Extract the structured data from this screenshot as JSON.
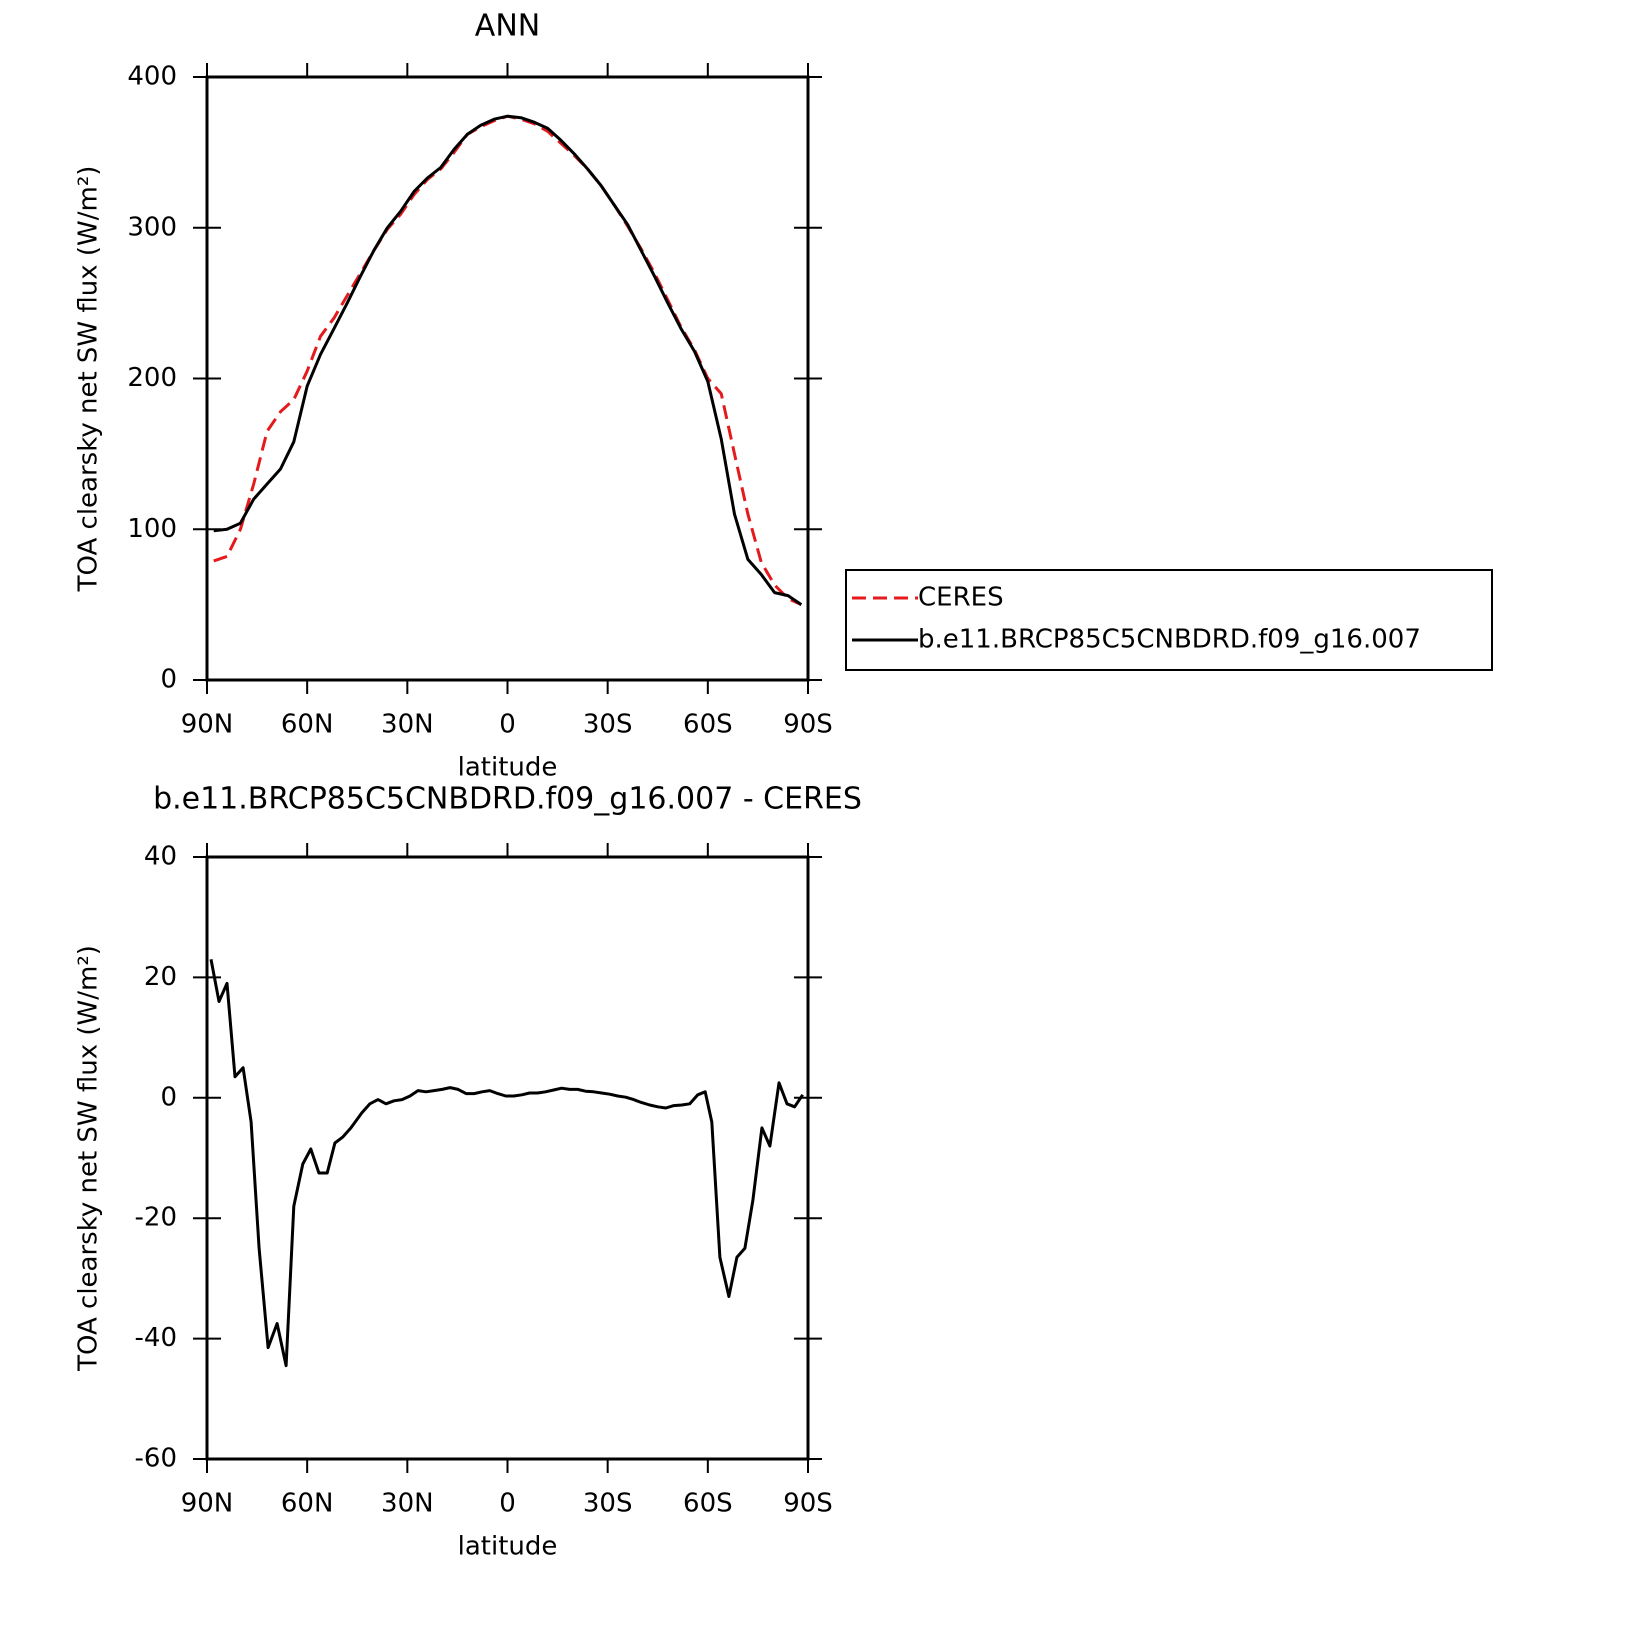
{
  "chart_data": [
    {
      "type": "line",
      "title": "ANN",
      "xlabel": "latitude",
      "ylabel": "TOA clearsky net SW flux (W/m²)",
      "x": [
        88,
        84,
        80,
        76,
        72,
        68,
        64,
        60,
        56,
        52,
        48,
        44,
        40,
        36,
        32,
        28,
        24,
        20,
        16,
        12,
        8,
        4,
        0,
        -4,
        -8,
        -12,
        -16,
        -20,
        -24,
        -28,
        -32,
        -36,
        -40,
        -44,
        -48,
        -52,
        -56,
        -60,
        -64,
        -68,
        -72,
        -76,
        -80,
        -84,
        -88
      ],
      "series": [
        {
          "name": "CERES",
          "color": "#e41a1c",
          "line_style": "dashed",
          "values": [
            79,
            82,
            100,
            130,
            165,
            178,
            186,
            205,
            228,
            240,
            255,
            270,
            285,
            299,
            309,
            322,
            332,
            339,
            350,
            362,
            367,
            371,
            374,
            372,
            369,
            364,
            356,
            348,
            339,
            328,
            315,
            301,
            286,
            270,
            252,
            234,
            219,
            200,
            190,
            150,
            110,
            78,
            63,
            54,
            50
          ]
        },
        {
          "name": "b.e11.BRCP85C5CNBDRD.f09_g16.007",
          "color": "#000000",
          "line_style": "solid",
          "values": [
            99,
            100,
            104,
            120,
            130,
            140,
            158,
            195,
            216,
            233,
            250,
            268,
            285,
            300,
            311,
            324,
            333,
            340,
            352,
            362,
            368,
            372,
            374,
            373,
            370,
            366,
            358,
            349,
            339,
            328,
            315,
            302,
            285,
            268,
            250,
            233,
            218,
            198,
            160,
            110,
            80,
            70,
            58,
            56,
            50
          ]
        }
      ],
      "xlim": [
        90,
        -90
      ],
      "xticks": [
        {
          "value": 90,
          "label": "90N"
        },
        {
          "value": 60,
          "label": "60N"
        },
        {
          "value": 30,
          "label": "30N"
        },
        0,
        {
          "value": -30,
          "label": "30S"
        },
        {
          "value": -60,
          "label": "60S"
        },
        {
          "value": -90,
          "label": "90S"
        }
      ],
      "ylim": [
        0,
        400
      ],
      "yticks": [
        0,
        100,
        200,
        300,
        400
      ],
      "legend": "right"
    },
    {
      "type": "line",
      "title": "b.e11.BRCP85C5CNBDRD.f09_g16.007 - CERES",
      "xlabel": "latitude",
      "ylabel": "TOA clearsky net SW flux (W/m²)",
      "x": [
        88.8,
        86.4,
        84,
        81.6,
        79.2,
        76.8,
        74.4,
        71.7,
        69,
        66.3,
        64,
        61.3,
        58.9,
        56.5,
        54,
        51.7,
        49.3,
        46.9,
        43.6,
        41.2,
        38.8,
        36.4,
        34,
        31.6,
        29.2,
        26.8,
        24.4,
        22,
        19.6,
        17.2,
        14.8,
        12.4,
        10,
        7.6,
        5.3,
        2.9,
        0.5,
        -1.9,
        -4.3,
        -6.6,
        -9,
        -11.4,
        -13.8,
        -16.2,
        -18.6,
        -21,
        -23.4,
        -25.8,
        -28.2,
        -30.6,
        -33,
        -35.4,
        -37.8,
        -40.2,
        -42.6,
        -45,
        -47.4,
        -49.8,
        -52.2,
        -54.6,
        -57,
        -59.2,
        -61.2,
        -63.6,
        -66.3,
        -68.7,
        -71.1,
        -73.5,
        -76.2,
        -78.6,
        -81.3,
        -83.7,
        -86,
        -88.4
      ],
      "series": [
        {
          "name": "b.e11.BRCP85C5CNBDRD.f09_g16.007 - CERES",
          "color": "#000000",
          "line_style": "solid",
          "values": [
            23,
            16,
            19,
            3.5,
            5,
            -4,
            -25,
            -41.5,
            -37.5,
            -44.5,
            -18,
            -11,
            -8.5,
            -12.5,
            -12.5,
            -7.5,
            -6.5,
            -5,
            -2.5,
            -1,
            -0.3,
            -1,
            -0.5,
            -0.3,
            0.3,
            1.2,
            1,
            1.2,
            1.4,
            1.7,
            1.4,
            0.7,
            0.7,
            1,
            1.2,
            0.7,
            0.3,
            0.3,
            0.5,
            0.8,
            0.8,
            1,
            1.3,
            1.6,
            1.4,
            1.4,
            1.1,
            1,
            0.8,
            0.6,
            0.3,
            0.1,
            -0.3,
            -0.8,
            -1.2,
            -1.5,
            -1.7,
            -1.3,
            -1.2,
            -1,
            0.5,
            1,
            -4,
            -26.5,
            -33,
            -26.5,
            -25,
            -17,
            -5,
            -8,
            2.5,
            -1,
            -1.5,
            0.5
          ]
        }
      ],
      "xlim": [
        90,
        -90
      ],
      "xticks": [
        {
          "value": 90,
          "label": "90N"
        },
        {
          "value": 60,
          "label": "60N"
        },
        {
          "value": 30,
          "label": "30N"
        },
        0,
        {
          "value": -30,
          "label": "30S"
        },
        {
          "value": -60,
          "label": "60S"
        },
        {
          "value": -90,
          "label": "90S"
        }
      ],
      "ylim": [
        -60,
        40
      ],
      "yticks": [
        -60,
        -40,
        -20,
        0,
        20,
        40
      ]
    }
  ]
}
